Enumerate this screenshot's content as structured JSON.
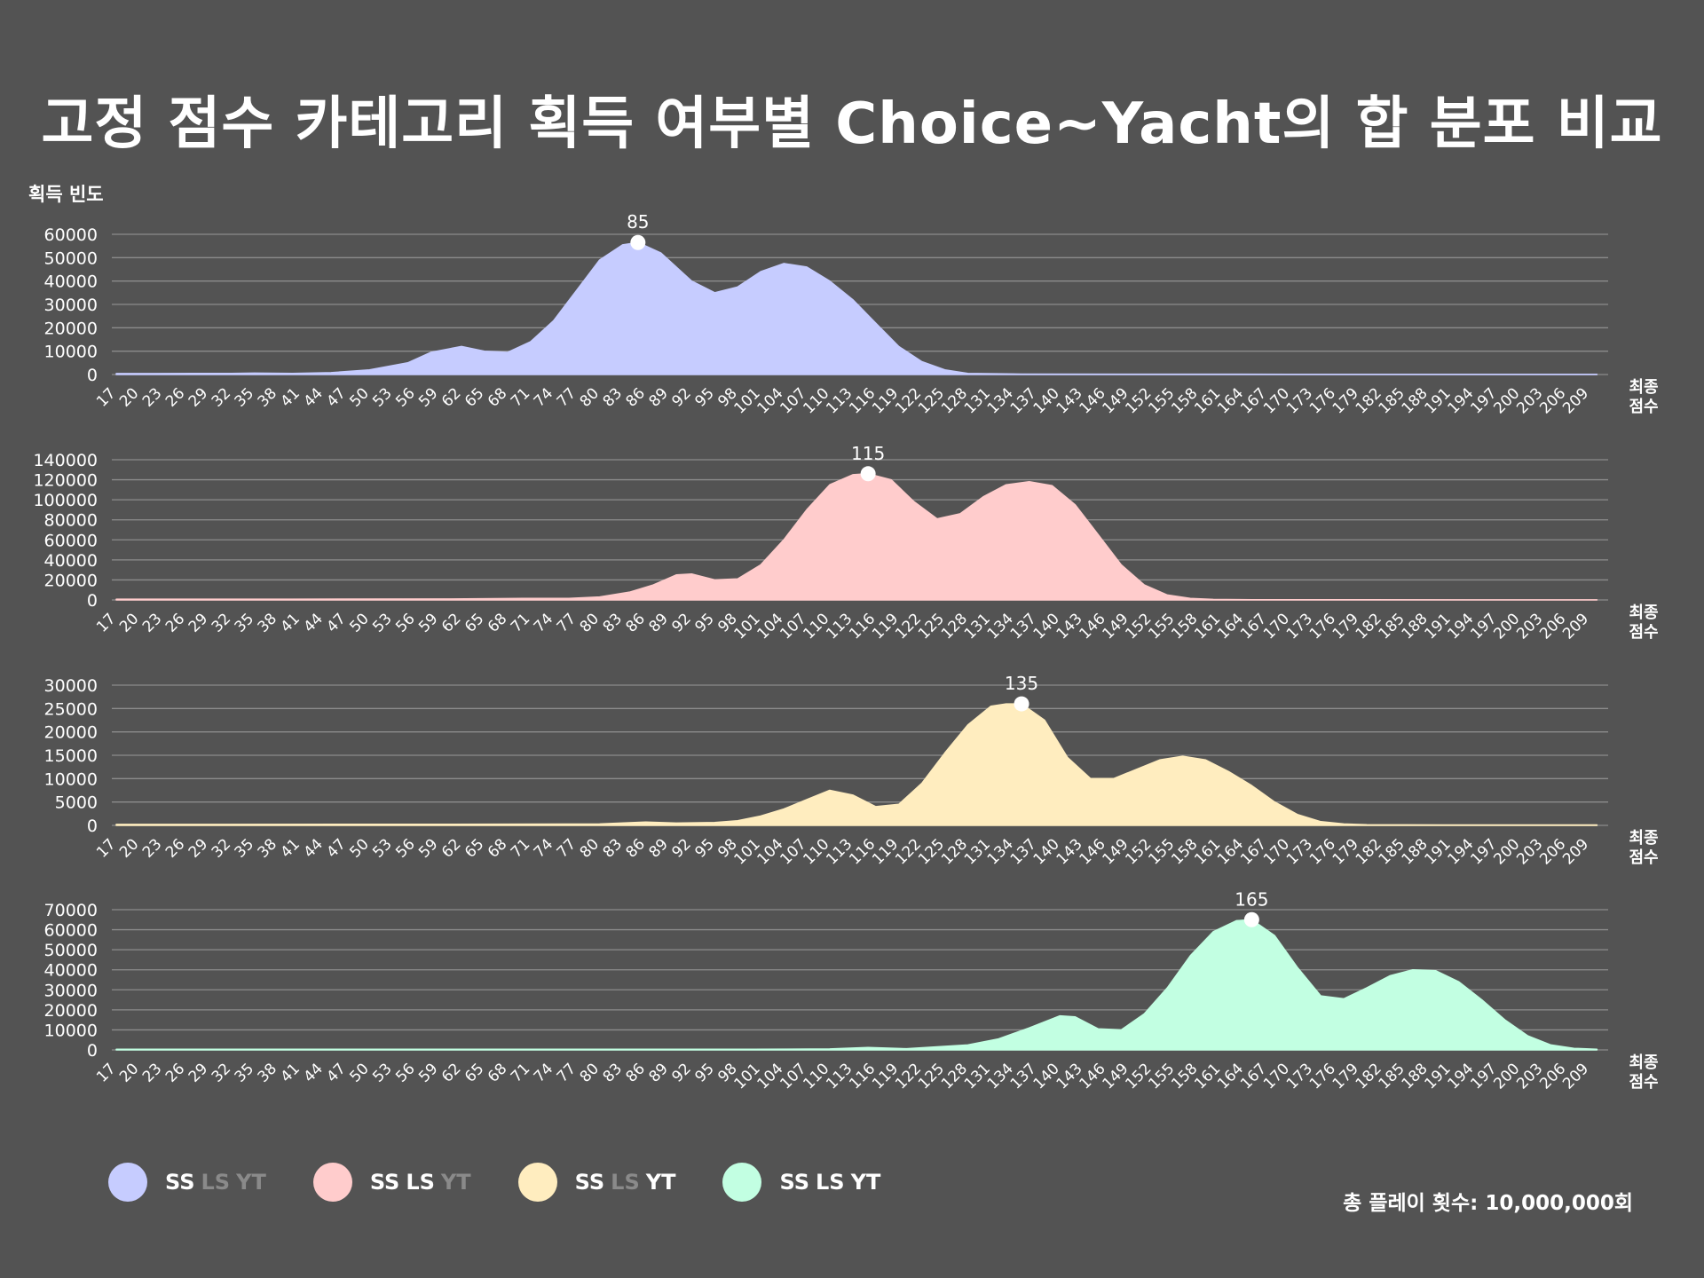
{
  "title": "고정 점수 카테고리 획득 여부별 Choice~Yacht의 합 분포 비교",
  "ylabel": "획득 빈도",
  "xlabel": "최종 점수",
  "total_plays": "총 플레이 횟수: 10,000,000회",
  "legend": [
    {
      "color": "#c6ccff",
      "tags": [
        {
          "text": "SS",
          "on": true
        },
        {
          "text": "LS",
          "on": false
        },
        {
          "text": "YT",
          "on": false
        }
      ]
    },
    {
      "color": "#ffcccc",
      "tags": [
        {
          "text": "SS",
          "on": true
        },
        {
          "text": "LS",
          "on": true
        },
        {
          "text": "YT",
          "on": false
        }
      ]
    },
    {
      "color": "#ffedbf",
      "tags": [
        {
          "text": "SS",
          "on": true
        },
        {
          "text": "LS",
          "on": false
        },
        {
          "text": "YT",
          "on": true
        }
      ]
    },
    {
      "color": "#c2ffe2",
      "tags": [
        {
          "text": "SS",
          "on": true
        },
        {
          "text": "LS",
          "on": true
        },
        {
          "text": "YT",
          "on": true
        }
      ]
    }
  ],
  "chart_data": [
    {
      "type": "area",
      "color": "#c6ccff",
      "ylim": [
        0,
        60000
      ],
      "yticks": [
        0,
        10000,
        20000,
        30000,
        40000,
        50000,
        60000
      ],
      "peak": {
        "x": 85,
        "label": "85",
        "y": 56500
      },
      "x": [
        17,
        22,
        27,
        32,
        35,
        40,
        45,
        50,
        55,
        58,
        62,
        65,
        68,
        71,
        74,
        77,
        80,
        83,
        85,
        88,
        92,
        95,
        98,
        101,
        104,
        107,
        110,
        113,
        116,
        119,
        122,
        125,
        128,
        135,
        150,
        170,
        190,
        210
      ],
      "values": [
        400,
        400,
        450,
        500,
        600,
        500,
        800,
        2000,
        5000,
        9500,
        12000,
        10000,
        9500,
        14000,
        23000,
        36000,
        49000,
        55500,
        56500,
        52000,
        40000,
        35000,
        37500,
        44000,
        47500,
        46000,
        40000,
        32000,
        22000,
        12000,
        5500,
        2000,
        500,
        200,
        150,
        100,
        100,
        100
      ]
    },
    {
      "type": "area",
      "color": "#ffcccc",
      "ylim": [
        0,
        140000
      ],
      "yticks": [
        0,
        20000,
        40000,
        60000,
        80000,
        100000,
        120000,
        140000
      ],
      "peak": {
        "x": 115,
        "label": "115",
        "y": 126000
      },
      "x": [
        17,
        40,
        60,
        70,
        76,
        80,
        84,
        87,
        90,
        92,
        95,
        98,
        101,
        104,
        107,
        110,
        113,
        115,
        118,
        121,
        124,
        127,
        130,
        133,
        136,
        139,
        142,
        145,
        148,
        151,
        154,
        157,
        160,
        165,
        180,
        210
      ],
      "values": [
        800,
        800,
        1000,
        1500,
        1500,
        3000,
        8000,
        15000,
        25000,
        26000,
        20000,
        21000,
        35000,
        60000,
        90000,
        115000,
        125000,
        126000,
        120000,
        98000,
        81000,
        86000,
        103000,
        115000,
        118000,
        114000,
        95000,
        65000,
        35000,
        15000,
        5000,
        1500,
        500,
        300,
        200,
        100
      ]
    },
    {
      "type": "area",
      "color": "#ffedbf",
      "ylim": [
        0,
        30000
      ],
      "yticks": [
        0,
        5000,
        10000,
        15000,
        20000,
        25000,
        30000
      ],
      "peak": {
        "x": 135,
        "label": "135",
        "y": 26000
      },
      "x": [
        17,
        60,
        80,
        86,
        90,
        95,
        98,
        101,
        104,
        107,
        110,
        113,
        116,
        119,
        122,
        125,
        128,
        131,
        133,
        135,
        138,
        141,
        144,
        147,
        150,
        153,
        156,
        159,
        162,
        165,
        168,
        171,
        174,
        177,
        180,
        190,
        210
      ],
      "values": [
        200,
        250,
        300,
        700,
        500,
        600,
        1000,
        2000,
        3500,
        5500,
        7500,
        6500,
        4000,
        4500,
        9000,
        15500,
        21500,
        25500,
        26000,
        26000,
        22500,
        14500,
        10000,
        10000,
        12000,
        14000,
        14800,
        14000,
        11500,
        8500,
        5000,
        2300,
        800,
        300,
        150,
        100,
        100
      ]
    },
    {
      "type": "area",
      "color": "#c2ffe2",
      "ylim": [
        0,
        70000
      ],
      "yticks": [
        0,
        10000,
        20000,
        30000,
        40000,
        50000,
        60000,
        70000
      ],
      "peak": {
        "x": 165,
        "label": "165",
        "y": 65000
      },
      "x": [
        17,
        100,
        110,
        115,
        120,
        128,
        132,
        136,
        140,
        142,
        145,
        148,
        151,
        154,
        157,
        160,
        163,
        165,
        168,
        171,
        174,
        177,
        180,
        183,
        186,
        189,
        192,
        195,
        198,
        201,
        204,
        207,
        210
      ],
      "values": [
        300,
        300,
        500,
        1200,
        600,
        2500,
        5500,
        11000,
        17000,
        16500,
        10500,
        10000,
        18000,
        31000,
        47000,
        59000,
        64500,
        65000,
        57000,
        41000,
        27000,
        25500,
        31000,
        37000,
        40000,
        39500,
        34000,
        25000,
        15000,
        7000,
        2500,
        800,
        300
      ]
    }
  ]
}
